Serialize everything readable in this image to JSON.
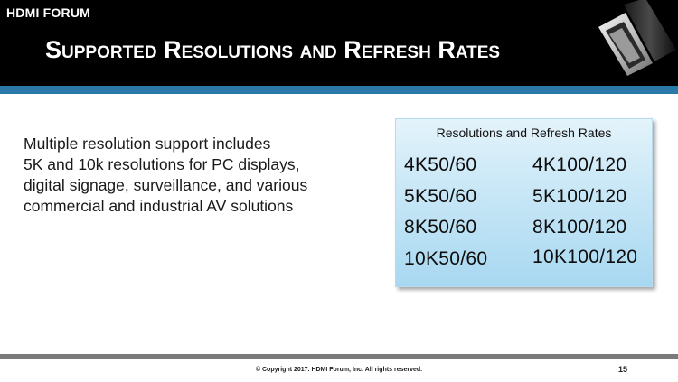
{
  "header": {
    "brand": "HDMI FORUM",
    "title": "Supported Resolutions and Refresh Rates"
  },
  "body": {
    "lines": [
      "Multiple resolution support includes",
      "5K and 10k resolutions for PC displays,",
      "digital signage, surveillance, and various",
      "commercial and industrial AV solutions"
    ]
  },
  "panel": {
    "title": "Resolutions and Refresh Rates",
    "left_column": [
      "4K50/60",
      "5K50/60",
      "8K50/60",
      "10K50/60"
    ],
    "right_column": [
      "4K100/120",
      "5K100/120",
      "8K100/120",
      "10K100/120"
    ]
  },
  "footer": {
    "copyright": "© Copyright 2017. HDMI Forum, Inc.  All rights reserved.",
    "page_number": "15"
  },
  "colors": {
    "header_bg": "#000000",
    "accent_bar": "#2b79a8",
    "panel_gradient_top": "#e4f3fb",
    "panel_gradient_bottom": "#a8d8f1",
    "footer_line": "#7a7a7a"
  },
  "icons": {
    "header_image": "hdmi-cable-icon"
  }
}
